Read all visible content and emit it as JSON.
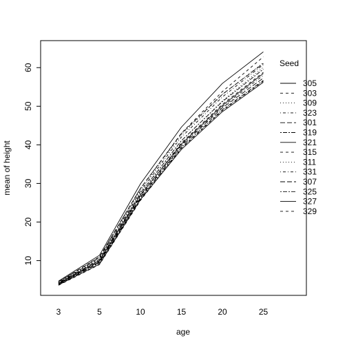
{
  "chart_data": {
    "type": "line",
    "xlabel": "age",
    "ylabel": "mean of  height",
    "x": [
      3,
      5,
      10,
      15,
      20,
      25
    ],
    "x_axis_style": "categorical-evenly-spaced",
    "ylim": [
      1,
      67
    ],
    "yticks": [
      10,
      20,
      30,
      40,
      50,
      60
    ],
    "grid": false,
    "legend": {
      "title": "Seed",
      "position": "right-top"
    },
    "series": [
      {
        "name": "305",
        "dash": "solid",
        "values": [
          4.7,
          11.4,
          29.9,
          44.6,
          55.9,
          64.1
        ]
      },
      {
        "name": "303",
        "dash": "dashed",
        "values": [
          4.5,
          11.0,
          28.7,
          43.0,
          53.8,
          62.8
        ]
      },
      {
        "name": "309",
        "dash": "dotted",
        "values": [
          4.4,
          10.7,
          28.3,
          42.5,
          53.0,
          61.3
        ]
      },
      {
        "name": "323",
        "dash": "dotdash",
        "values": [
          4.3,
          10.6,
          28.0,
          42.0,
          52.4,
          60.8
        ]
      },
      {
        "name": "301",
        "dash": "longdash",
        "values": [
          4.5,
          10.9,
          28.7,
          42.9,
          53.1,
          61.1
        ]
      },
      {
        "name": "319",
        "dash": "twodash",
        "values": [
          4.2,
          10.3,
          27.5,
          41.1,
          51.2,
          59.6
        ]
      },
      {
        "name": "321",
        "dash": "solid",
        "values": [
          4.1,
          10.0,
          27.0,
          40.2,
          50.2,
          58.5
        ]
      },
      {
        "name": "315",
        "dash": "dashed",
        "values": [
          4.0,
          9.8,
          26.8,
          40.5,
          50.5,
          58.8
        ]
      },
      {
        "name": "311",
        "dash": "dotted",
        "values": [
          4.2,
          10.2,
          27.3,
          41.0,
          51.4,
          60.1
        ]
      },
      {
        "name": "331",
        "dash": "dotdash",
        "values": [
          4.0,
          9.7,
          26.5,
          40.0,
          49.9,
          58.0
        ]
      },
      {
        "name": "307",
        "dash": "longdash",
        "values": [
          3.9,
          9.6,
          26.3,
          39.7,
          49.6,
          57.3
        ]
      },
      {
        "name": "325",
        "dash": "twodash",
        "values": [
          3.8,
          9.4,
          26.0,
          39.3,
          49.1,
          56.7
        ]
      },
      {
        "name": "327",
        "dash": "solid",
        "values": [
          3.7,
          9.1,
          25.8,
          38.8,
          48.6,
          56.2
        ]
      },
      {
        "name": "329",
        "dash": "dashed",
        "values": [
          3.6,
          9.0,
          25.6,
          39.1,
          48.9,
          56.5
        ]
      }
    ]
  }
}
